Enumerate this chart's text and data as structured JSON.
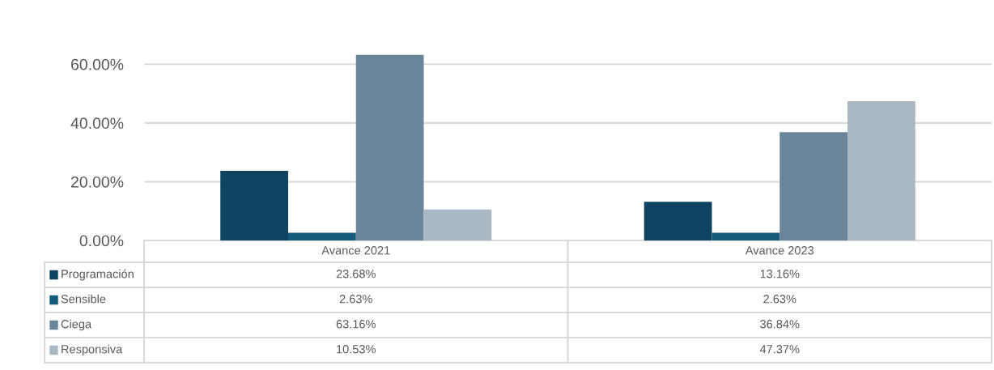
{
  "chart_data": {
    "type": "bar",
    "categories": [
      "Avance 2021",
      "Avance 2023"
    ],
    "series": [
      {
        "name": "Programación",
        "color": "#0e4461",
        "values": [
          23.68,
          13.16
        ],
        "value_labels": [
          "23.68%",
          "13.16%"
        ]
      },
      {
        "name": "Sensible",
        "color": "#145a7a",
        "values": [
          2.63,
          2.63
        ],
        "value_labels": [
          "2.63%",
          "2.63%"
        ]
      },
      {
        "name": "Ciega",
        "color": "#688599",
        "values": [
          63.16,
          36.84
        ],
        "value_labels": [
          "63.16%",
          "36.84%"
        ]
      },
      {
        "name": "Responsiva",
        "color": "#a9b8c3",
        "values": [
          10.53,
          47.37
        ],
        "value_labels": [
          "10.53%",
          "47.37%"
        ]
      }
    ],
    "ylim": [
      0,
      70
    ],
    "yticks": [
      {
        "value": 0,
        "label": "0.00%"
      },
      {
        "value": 20,
        "label": "20.00%"
      },
      {
        "value": 40,
        "label": "40.00%"
      },
      {
        "value": 60,
        "label": "60.00%"
      }
    ],
    "grid": "y",
    "legend": "bottom"
  }
}
